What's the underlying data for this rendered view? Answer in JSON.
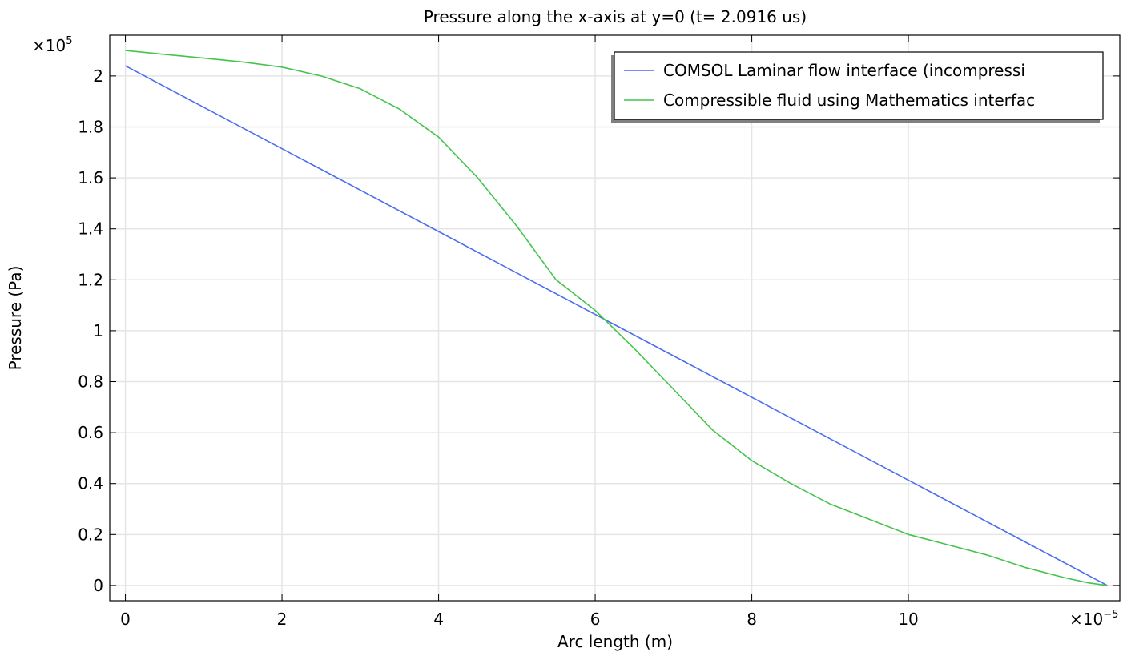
{
  "chart_data": {
    "type": "line",
    "title": "Pressure along the x-axis at y=0 (t= 2.0916 us)",
    "xlabel": "Arc length (m)",
    "ylabel": "Pressure (Pa)",
    "x_multiplier": {
      "base": "×10",
      "exponent": "−5"
    },
    "y_multiplier": {
      "base": "×10",
      "exponent": "5"
    },
    "x_scale": 1e-05,
    "y_scale": 100000,
    "xlim": [
      -0.2,
      12.7
    ],
    "ylim": [
      -0.06,
      2.16
    ],
    "x_ticks": [
      0,
      2,
      4,
      6,
      8,
      10
    ],
    "x_tick_labels": [
      "0",
      "2",
      "4",
      "6",
      "8",
      "10"
    ],
    "y_ticks": [
      0,
      0.2,
      0.4,
      0.6,
      0.8,
      1,
      1.2,
      1.4,
      1.6,
      1.8,
      2
    ],
    "y_tick_labels": [
      "0",
      "0.2",
      "0.4",
      "0.6",
      "0.8",
      "1",
      "1.2",
      "1.4",
      "1.6",
      "1.8",
      "2"
    ],
    "grid": true,
    "legend_position": "top-right",
    "series": [
      {
        "name": "COMSOL Laminar flow interface (incompressi",
        "color": "#4a6ef0",
        "x": [
          0,
          12.54
        ],
        "y": [
          2.04,
          0.0
        ]
      },
      {
        "name": "Compressible fluid using Mathematics interfac",
        "color": "#45c44d",
        "x": [
          0,
          0.5,
          1.0,
          1.5,
          2.0,
          2.5,
          3.0,
          3.5,
          4.0,
          4.5,
          5.0,
          5.5,
          6.0,
          6.5,
          7.0,
          7.5,
          8.0,
          8.5,
          9.0,
          9.5,
          10.0,
          10.5,
          11.0,
          11.5,
          12.0,
          12.3,
          12.54
        ],
        "y": [
          2.1,
          2.085,
          2.07,
          2.055,
          2.035,
          2.0,
          1.95,
          1.87,
          1.76,
          1.6,
          1.41,
          1.2,
          1.08,
          0.93,
          0.77,
          0.61,
          0.49,
          0.4,
          0.32,
          0.26,
          0.2,
          0.16,
          0.12,
          0.07,
          0.03,
          0.01,
          0.0
        ]
      }
    ]
  }
}
